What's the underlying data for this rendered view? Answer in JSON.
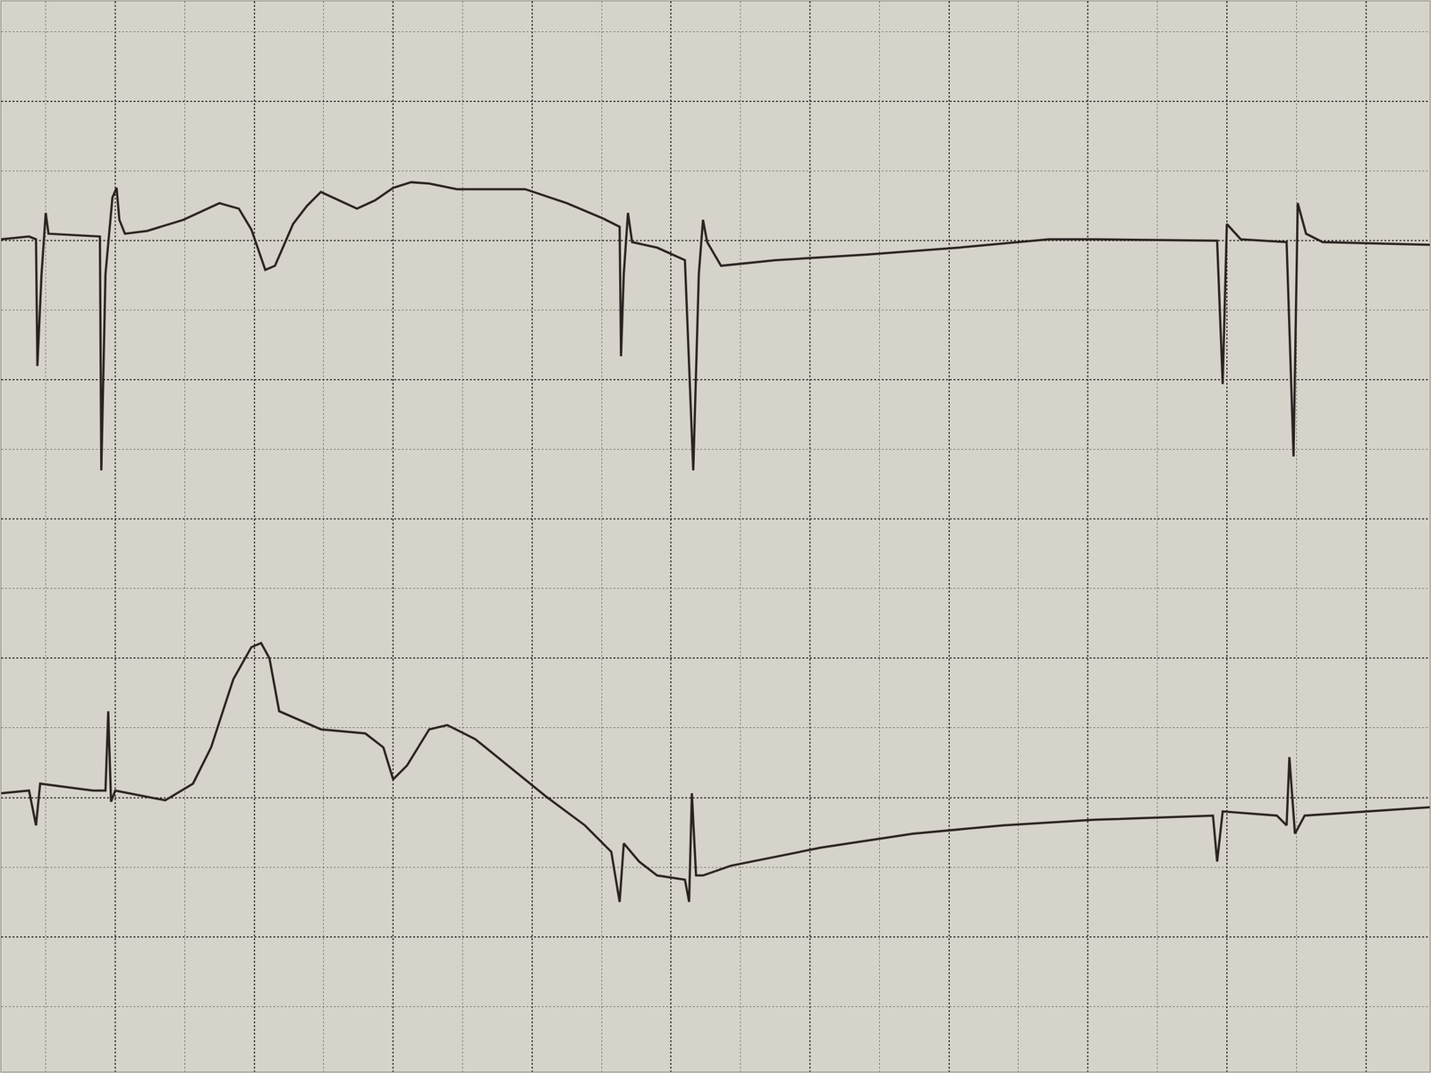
{
  "chart_data": {
    "type": "line",
    "grid": true,
    "tick_labels": false,
    "xlim": [
      -0.82,
      9.46
    ],
    "ylim": [
      -1.97,
      5.72
    ],
    "xticks": [
      0,
      1,
      2,
      3,
      4,
      5,
      6,
      7,
      8,
      9
    ],
    "yticks": [
      -1,
      0,
      1,
      2,
      3,
      4,
      5
    ],
    "series": [
      {
        "color": "#2a2320",
        "x": [
          -0.82,
          -0.62,
          -0.57,
          -0.56,
          -0.53,
          -0.5,
          -0.48,
          -0.11,
          -0.1,
          -0.07,
          -0.02,
          0.01,
          0.03,
          0.07,
          0.23,
          0.49,
          0.75,
          0.89,
          0.98,
          1.08,
          1.15,
          1.28,
          1.38,
          1.48,
          1.61,
          1.74,
          1.87,
          2.0,
          2.13,
          2.26,
          2.46,
          2.95,
          3.25,
          3.51,
          3.63,
          3.64,
          3.66,
          3.69,
          3.72,
          3.9,
          4.1,
          4.16,
          4.2,
          4.23,
          4.26,
          4.36,
          4.75,
          5.41,
          6.07,
          6.72,
          7.05,
          7.93,
          7.97,
          8.0,
          8.1,
          8.43,
          8.48,
          8.51,
          8.57,
          8.69,
          9.46
        ],
        "values": [
          4.01,
          4.03,
          4.01,
          3.1,
          3.76,
          4.2,
          4.05,
          4.03,
          2.35,
          3.76,
          4.31,
          4.38,
          4.15,
          4.05,
          4.07,
          4.15,
          4.27,
          4.23,
          4.08,
          3.79,
          3.82,
          4.12,
          4.25,
          4.35,
          4.29,
          4.23,
          4.29,
          4.38,
          4.42,
          4.41,
          4.37,
          4.37,
          4.27,
          4.16,
          4.1,
          3.17,
          3.76,
          4.2,
          3.99,
          3.95,
          3.86,
          2.35,
          3.76,
          4.15,
          3.99,
          3.82,
          3.86,
          3.9,
          3.95,
          4.01,
          4.01,
          4.0,
          2.97,
          4.12,
          4.01,
          3.99,
          2.45,
          4.27,
          4.05,
          3.99,
          3.97
        ]
      },
      {
        "color": "#2a2320",
        "x": [
          -0.82,
          -0.62,
          -0.57,
          -0.54,
          -0.16,
          -0.07,
          -0.05,
          -0.03,
          0.0,
          0.36,
          0.56,
          0.69,
          0.85,
          0.98,
          1.05,
          1.11,
          1.18,
          1.48,
          1.8,
          1.93,
          2.0,
          2.1,
          2.26,
          2.39,
          2.59,
          2.79,
          3.11,
          3.38,
          3.57,
          3.63,
          3.66,
          3.77,
          3.9,
          4.1,
          4.13,
          4.15,
          4.18,
          4.23,
          4.43,
          5.08,
          5.74,
          6.39,
          7.05,
          7.9,
          7.93,
          7.97,
          8.36,
          8.43,
          8.45,
          8.49,
          8.56,
          9.46
        ],
        "values": [
          0.03,
          0.05,
          -0.2,
          0.1,
          0.05,
          0.05,
          0.62,
          -0.03,
          0.05,
          -0.02,
          0.1,
          0.36,
          0.85,
          1.08,
          1.11,
          1.0,
          0.62,
          0.49,
          0.46,
          0.36,
          0.13,
          0.23,
          0.49,
          0.52,
          0.42,
          0.26,
          0.0,
          -0.2,
          -0.39,
          -0.75,
          -0.33,
          -0.46,
          -0.56,
          -0.59,
          -0.75,
          0.03,
          -0.56,
          -0.56,
          -0.49,
          -0.36,
          -0.26,
          -0.2,
          -0.16,
          -0.13,
          -0.46,
          -0.1,
          -0.13,
          -0.2,
          0.29,
          -0.26,
          -0.13,
          -0.07
        ]
      }
    ]
  }
}
